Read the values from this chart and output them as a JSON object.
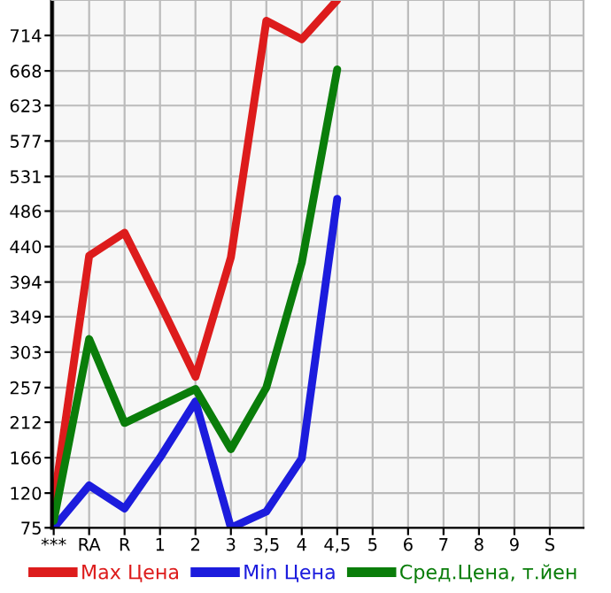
{
  "chart_data": {
    "type": "line",
    "categories": [
      "***",
      "RA",
      "R",
      "1",
      "2",
      "3",
      "3,5",
      "4",
      "4,5",
      "5",
      "6",
      "7",
      "8",
      "9",
      "S"
    ],
    "series": [
      {
        "name": "Max Цена",
        "color": "#dd1c1c",
        "values": [
          107,
          428,
          458,
          366,
          271,
          426,
          733,
          709,
          760,
          null,
          null,
          null,
          null,
          null,
          null
        ]
      },
      {
        "name": "Min Цена",
        "color": "#1c1cdd",
        "values": [
          75,
          130,
          100,
          166,
          239,
          75,
          96,
          165,
          502,
          null,
          null,
          null,
          null,
          null,
          null
        ]
      },
      {
        "name": "Сред.Цена, т.йен",
        "color": "#0a7d0a",
        "values": [
          84,
          320,
          211,
          233,
          255,
          177,
          257,
          419,
          670,
          null,
          null,
          null,
          null,
          null,
          null
        ]
      }
    ],
    "ylim": [
      75,
      760
    ],
    "yticks": [
      75,
      120,
      166,
      212,
      257,
      303,
      349,
      394,
      440,
      486,
      531,
      577,
      623,
      668,
      714
    ],
    "grid": true,
    "legend": "bottom",
    "marker": "none",
    "line_style": "solid"
  }
}
